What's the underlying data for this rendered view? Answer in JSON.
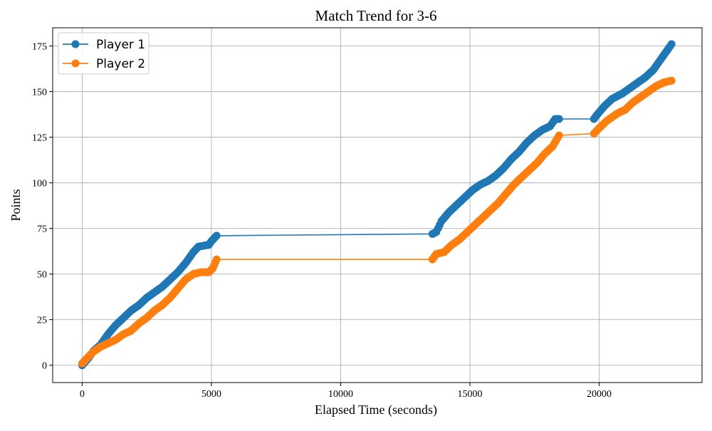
{
  "chart_data": {
    "type": "line",
    "title": "Match Trend for 3-6",
    "xlabel": "Elapsed Time (seconds)",
    "ylabel": "Points",
    "xlim": [
      -1140,
      23980
    ],
    "ylim": [
      -9.5,
      185
    ],
    "xticks": [
      0,
      5000,
      10000,
      15000,
      20000
    ],
    "xtick_labels": [
      "0",
      "5000",
      "10000",
      "15000",
      "20000"
    ],
    "yticks": [
      0,
      25,
      50,
      75,
      100,
      125,
      150,
      175
    ],
    "ytick_labels": [
      "0",
      "25",
      "50",
      "75",
      "100",
      "125",
      "150",
      "175"
    ],
    "grid": true,
    "legend_position": "top-left",
    "series": [
      {
        "name": "Player 1",
        "color": "#1f77b4",
        "points": [
          [
            0,
            0
          ],
          [
            250,
            4
          ],
          [
            450,
            8
          ],
          [
            700,
            11
          ],
          [
            1000,
            17
          ],
          [
            1300,
            22
          ],
          [
            1600,
            26
          ],
          [
            1900,
            30
          ],
          [
            2200,
            33
          ],
          [
            2500,
            37
          ],
          [
            2800,
            40
          ],
          [
            3100,
            43
          ],
          [
            3400,
            47
          ],
          [
            3700,
            51
          ],
          [
            4000,
            56
          ],
          [
            4300,
            62
          ],
          [
            4500,
            65
          ],
          [
            4900,
            66
          ],
          [
            5000,
            68
          ],
          [
            5200,
            71
          ],
          [
            13550,
            72
          ],
          [
            13700,
            73
          ],
          [
            13900,
            79
          ],
          [
            14200,
            84
          ],
          [
            14500,
            88
          ],
          [
            14800,
            92
          ],
          [
            15100,
            96
          ],
          [
            15400,
            99
          ],
          [
            15700,
            101
          ],
          [
            16000,
            104
          ],
          [
            16300,
            108
          ],
          [
            16600,
            113
          ],
          [
            16900,
            117
          ],
          [
            17200,
            122
          ],
          [
            17500,
            126
          ],
          [
            17800,
            129
          ],
          [
            18100,
            131
          ],
          [
            18300,
            135
          ],
          [
            18450,
            135
          ],
          [
            19800,
            135
          ],
          [
            19900,
            137
          ],
          [
            20200,
            142
          ],
          [
            20500,
            146
          ],
          [
            20900,
            149
          ],
          [
            21200,
            152
          ],
          [
            21500,
            155
          ],
          [
            21800,
            158
          ],
          [
            22100,
            162
          ],
          [
            22400,
            168
          ],
          [
            22800,
            176
          ]
        ]
      },
      {
        "name": "Player 2",
        "color": "#ff7f0e",
        "points": [
          [
            0,
            1
          ],
          [
            200,
            4
          ],
          [
            400,
            7
          ],
          [
            700,
            10
          ],
          [
            1000,
            12
          ],
          [
            1300,
            14
          ],
          [
            1600,
            17
          ],
          [
            1900,
            19
          ],
          [
            2200,
            23
          ],
          [
            2500,
            26
          ],
          [
            2800,
            30
          ],
          [
            3100,
            33
          ],
          [
            3400,
            37
          ],
          [
            3700,
            42
          ],
          [
            4000,
            47
          ],
          [
            4300,
            50
          ],
          [
            4600,
            51
          ],
          [
            4900,
            51
          ],
          [
            5050,
            53
          ],
          [
            5200,
            58
          ],
          [
            13550,
            58
          ],
          [
            13700,
            61
          ],
          [
            14000,
            62
          ],
          [
            14300,
            66
          ],
          [
            14600,
            69
          ],
          [
            14900,
            73
          ],
          [
            15200,
            77
          ],
          [
            15500,
            81
          ],
          [
            15800,
            85
          ],
          [
            16100,
            89
          ],
          [
            16400,
            94
          ],
          [
            16700,
            99
          ],
          [
            17000,
            103
          ],
          [
            17300,
            107
          ],
          [
            17600,
            111
          ],
          [
            17900,
            116
          ],
          [
            18200,
            120
          ],
          [
            18450,
            126
          ],
          [
            19800,
            127
          ],
          [
            20000,
            130
          ],
          [
            20300,
            134
          ],
          [
            20700,
            138
          ],
          [
            21000,
            140
          ],
          [
            21300,
            144
          ],
          [
            21600,
            147
          ],
          [
            21900,
            150
          ],
          [
            22200,
            153
          ],
          [
            22500,
            155
          ],
          [
            22800,
            156
          ]
        ]
      }
    ]
  }
}
